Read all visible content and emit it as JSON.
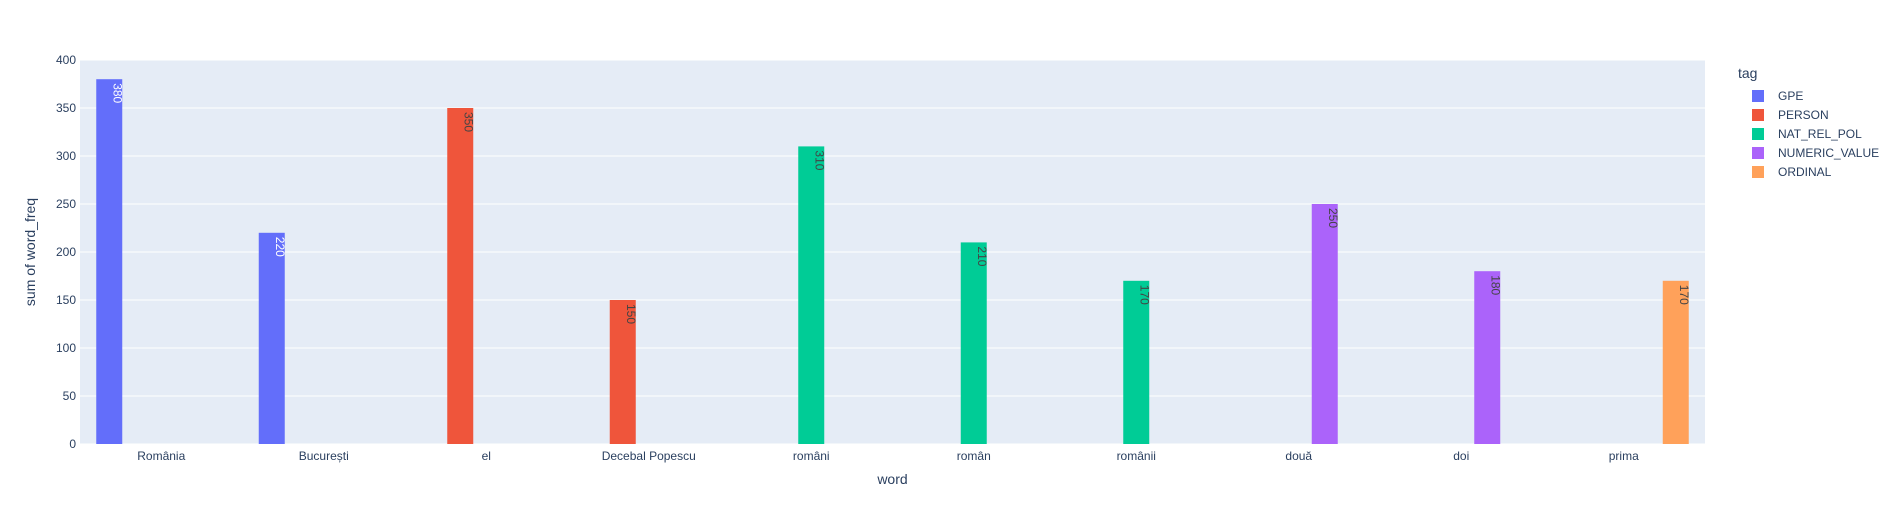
{
  "chart_data": {
    "type": "bar",
    "xlabel": "word",
    "ylabel": "sum of word_freq",
    "ylim": [
      0,
      400
    ],
    "yticks": [
      0,
      50,
      100,
      150,
      200,
      250,
      300,
      350,
      400
    ],
    "categories": [
      "România",
      "București",
      "el",
      "Decebal Popescu",
      "români",
      "român",
      "românii",
      "două",
      "doi",
      "prima"
    ],
    "legend_title": "tag",
    "legend_position": "top-right",
    "grid": true,
    "series": [
      {
        "name": "GPE",
        "color": "#636efa",
        "label_color": "#ffffff",
        "values": [
          380,
          220,
          null,
          null,
          null,
          null,
          null,
          null,
          null,
          null
        ]
      },
      {
        "name": "PERSON",
        "color": "#ef553b",
        "label_color": "#444444",
        "values": [
          null,
          null,
          350,
          150,
          null,
          null,
          null,
          null,
          null,
          null
        ]
      },
      {
        "name": "NAT_REL_POL",
        "color": "#00cc96",
        "label_color": "#444444",
        "values": [
          null,
          null,
          null,
          null,
          310,
          210,
          170,
          null,
          null,
          null
        ]
      },
      {
        "name": "NUMERIC_VALUE",
        "color": "#ab63fa",
        "label_color": "#444444",
        "values": [
          null,
          null,
          null,
          null,
          null,
          null,
          null,
          250,
          180,
          null
        ]
      },
      {
        "name": "ORDINAL",
        "color": "#ffa15a",
        "label_color": "#444444",
        "values": [
          null,
          null,
          null,
          null,
          null,
          null,
          null,
          null,
          null,
          170
        ]
      }
    ]
  }
}
